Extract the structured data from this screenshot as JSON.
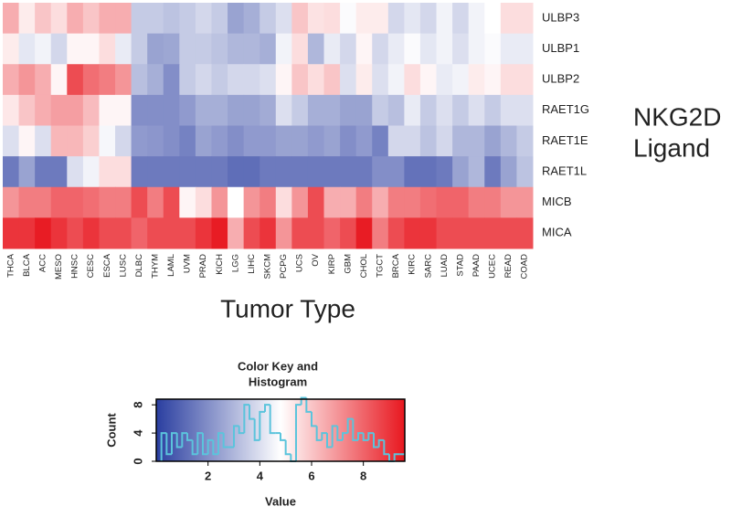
{
  "chart_data": [
    {
      "type": "heatmap",
      "x_label": "Tumor Type",
      "side_label": [
        "NKG2D",
        "Ligand"
      ],
      "categories": [
        "THCA",
        "BLCA",
        "ACC",
        "MESO",
        "HNSC",
        "CESC",
        "ESCA",
        "LUSC",
        "DLBC",
        "THYM",
        "LAML",
        "UVM",
        "PRAD",
        "KICH",
        "LGG",
        "LIHC",
        "SKCM",
        "PCPG",
        "UCS",
        "OV",
        "KIRP",
        "GBM",
        "CHOL",
        "TGCT",
        "BRCA",
        "KIRC",
        "SARC",
        "LUAD",
        "STAD",
        "PAAD",
        "UCEC",
        "READ",
        "COAD"
      ],
      "rows": [
        "ULBP3",
        "ULBP1",
        "ULBP2",
        "RAET1G",
        "RAET1E",
        "RAET1L",
        "MICB",
        "MICA"
      ],
      "values": [
        [
          6.5,
          5.2,
          6,
          5.5,
          6.5,
          6,
          6.5,
          6.5,
          3.5,
          3.5,
          3.3,
          3.5,
          3.8,
          3.5,
          2.5,
          2.8,
          3.5,
          4,
          6,
          5.4,
          5.5,
          4.7,
          5.2,
          5.2,
          3.8,
          4.2,
          3.8,
          4.5,
          3.8,
          4.5,
          4.8,
          5.5,
          5.5
        ],
        [
          5.2,
          4.2,
          4.5,
          3.8,
          5,
          5,
          5.5,
          4.3,
          3.5,
          2.5,
          2.6,
          3.5,
          3.5,
          3.3,
          3,
          3,
          2.8,
          4.5,
          5.5,
          3,
          4.3,
          3.8,
          5,
          3.8,
          4.3,
          4.7,
          4.2,
          4.5,
          4,
          4.5,
          4.7,
          4.3,
          4.3
        ],
        [
          6.5,
          7,
          6.5,
          5,
          8.5,
          7.8,
          7.5,
          7,
          3.2,
          2.8,
          2,
          3.5,
          3.8,
          3.5,
          3.8,
          3.8,
          4,
          5,
          6,
          5.5,
          6,
          4,
          5.2,
          4,
          4.5,
          5.5,
          5,
          4.3,
          4.5,
          5.2,
          5,
          5.5,
          5.5
        ],
        [
          5.3,
          6,
          6.5,
          6.8,
          6.8,
          6.2,
          5,
          5,
          2,
          2,
          2,
          2.3,
          2.8,
          2.8,
          2.5,
          2.5,
          2.7,
          4,
          3.5,
          2.8,
          2.8,
          2.5,
          2.5,
          3.5,
          3.2,
          4.3,
          3.5,
          4,
          3.5,
          4,
          3.5,
          4,
          4
        ],
        [
          4,
          5,
          4,
          6.3,
          6.3,
          5.8,
          4.6,
          3.8,
          2.3,
          2.2,
          2,
          1.7,
          2.5,
          2.3,
          2,
          2.3,
          2.3,
          2.5,
          2.5,
          2.3,
          2.5,
          2,
          2.3,
          1.7,
          3.8,
          3.8,
          3.3,
          3.8,
          3,
          3,
          2.5,
          3,
          3.5
        ],
        [
          1.5,
          2.5,
          1.5,
          1.5,
          4,
          4.5,
          5.5,
          5.5,
          1.5,
          1.5,
          1.5,
          1.5,
          1.5,
          1.5,
          1.2,
          1.2,
          1.5,
          1.5,
          1.5,
          1.5,
          1.5,
          1.5,
          1.5,
          2,
          2,
          1.3,
          1.3,
          1.5,
          2.5,
          3,
          1.5,
          2.5,
          3.3
        ],
        [
          7,
          7.5,
          7.5,
          8,
          8,
          7.8,
          7.5,
          7.5,
          8.5,
          7.5,
          8.5,
          5,
          5.5,
          7,
          4.8,
          7,
          7.5,
          5.5,
          7,
          8.5,
          6.5,
          6.5,
          7.5,
          6.5,
          7.5,
          7.5,
          7.8,
          8,
          8,
          7.5,
          7.5,
          7,
          7
        ],
        [
          9,
          9,
          9.5,
          9,
          8.5,
          9,
          8.5,
          8.5,
          8,
          8.5,
          8.5,
          8.5,
          9,
          9.5,
          6.5,
          8.5,
          9,
          7,
          8.5,
          8.5,
          8,
          8.5,
          9.5,
          7.5,
          8.5,
          9,
          9,
          8.5,
          8.5,
          8.5,
          8.5,
          8.5,
          8.5
        ]
      ]
    },
    {
      "type": "histogram",
      "title": [
        "Color Key and",
        "Histogram"
      ],
      "x_label": "Value",
      "y_label": "Count",
      "color": "#5bc4dc",
      "colormap": [
        "#2a3ea0",
        "#ffffff",
        "#e8171f"
      ],
      "bins": [
        0.2,
        0.4,
        0.6,
        0.8,
        1,
        1.2,
        1.4,
        1.6,
        1.8,
        2,
        2.2,
        2.4,
        2.6,
        2.8,
        3,
        3.2,
        3.4,
        3.6,
        3.8,
        4,
        4.2,
        4.4,
        4.6,
        4.8,
        5,
        5.2,
        5.4,
        5.6,
        5.8,
        6,
        6.2,
        6.4,
        6.6,
        6.8,
        7,
        7.2,
        7.4,
        7.6,
        7.8,
        8,
        8.2,
        8.4,
        8.6,
        8.8,
        9,
        9.2,
        9.4,
        9.6
      ],
      "values": [
        4,
        1,
        4,
        2,
        4,
        3,
        1,
        4,
        1,
        3,
        1,
        4,
        2,
        2,
        5,
        4,
        8,
        6,
        3,
        7,
        8,
        4,
        4,
        3,
        1,
        0,
        8,
        9,
        7,
        5,
        3,
        4,
        2,
        5,
        3,
        4,
        6,
        3,
        4,
        3,
        4,
        2,
        3,
        1,
        0,
        1,
        1
      ],
      "xlim": [
        0,
        9.6
      ],
      "ylim": [
        0,
        8.8
      ],
      "xticks": [
        2,
        4,
        6,
        8
      ],
      "yticks": [
        0,
        4,
        8
      ]
    }
  ]
}
